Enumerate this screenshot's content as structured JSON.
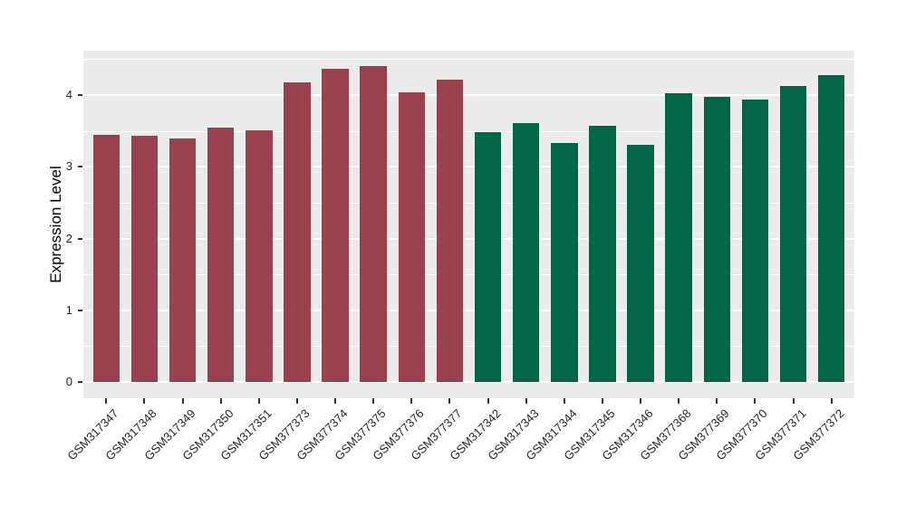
{
  "figure": {
    "background_color": "#FFFFFF",
    "panel_background_color": "#EBEBEB",
    "gridline_color": "#FFFFFF",
    "tick_mark_color": "#333333",
    "axis_text_color": "#262626",
    "axis_title_color": "#000000"
  },
  "chart_data": {
    "type": "bar",
    "title": "",
    "xlabel": "",
    "ylabel": "Expression Level",
    "legend": "none",
    "grid": true,
    "x_tick_rotation_deg": 45,
    "categories": [
      "GSM317347",
      "GSM317348",
      "GSM317349",
      "GSM317350",
      "GSM317351",
      "GSM377373",
      "GSM377374",
      "GSM377375",
      "GSM377376",
      "GSM377377",
      "GSM317342",
      "GSM317343",
      "GSM317344",
      "GSM317345",
      "GSM317346",
      "GSM377368",
      "GSM377369",
      "GSM377370",
      "GSM377371",
      "GSM377372"
    ],
    "values": [
      3.44,
      3.43,
      3.39,
      3.54,
      3.51,
      4.18,
      4.37,
      4.4,
      4.04,
      4.21,
      3.48,
      3.61,
      3.33,
      3.57,
      3.31,
      4.03,
      3.97,
      3.94,
      4.12,
      4.28
    ],
    "bar_colors": [
      "#9A4150",
      "#9A4150",
      "#9A4150",
      "#9A4150",
      "#9A4150",
      "#9A4150",
      "#9A4150",
      "#9A4150",
      "#9A4150",
      "#9A4150",
      "#006647",
      "#006647",
      "#006647",
      "#006647",
      "#006647",
      "#006647",
      "#006647",
      "#006647",
      "#006647",
      "#006647"
    ],
    "y_ticks": [
      0,
      1,
      2,
      3,
      4
    ],
    "y_minor_ticks": [
      0.5,
      1.5,
      2.5,
      3.5,
      4.5
    ],
    "ylim": [
      -0.23,
      4.62
    ]
  }
}
